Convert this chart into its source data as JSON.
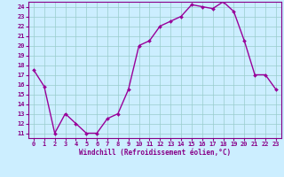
{
  "x": [
    0,
    1,
    2,
    3,
    4,
    5,
    6,
    7,
    8,
    9,
    10,
    11,
    12,
    13,
    14,
    15,
    16,
    17,
    18,
    19,
    20,
    21,
    22,
    23
  ],
  "y": [
    17.5,
    15.8,
    11.0,
    13.0,
    12.0,
    11.0,
    11.0,
    12.5,
    13.0,
    15.5,
    20.0,
    20.5,
    22.0,
    22.5,
    23.0,
    24.2,
    24.0,
    23.8,
    24.5,
    23.5,
    20.5,
    17.0,
    17.0,
    15.5
  ],
  "line_color": "#990099",
  "marker": "D",
  "marker_size": 2.0,
  "line_width": 1.0,
  "xlabel": "Windchill (Refroidissement éolien,°C)",
  "xlabel_fontsize": 5.5,
  "xlim": [
    -0.5,
    23.5
  ],
  "ylim": [
    10.5,
    24.5
  ],
  "yticks": [
    11,
    12,
    13,
    14,
    15,
    16,
    17,
    18,
    19,
    20,
    21,
    22,
    23,
    24
  ],
  "xticks": [
    0,
    1,
    2,
    3,
    4,
    5,
    6,
    7,
    8,
    9,
    10,
    11,
    12,
    13,
    14,
    15,
    16,
    17,
    18,
    19,
    20,
    21,
    22,
    23
  ],
  "grid_color": "#99cccc",
  "bg_color": "#cceeff",
  "tick_fontsize": 5.0,
  "tick_color": "#880088",
  "axis_color": "#880088"
}
